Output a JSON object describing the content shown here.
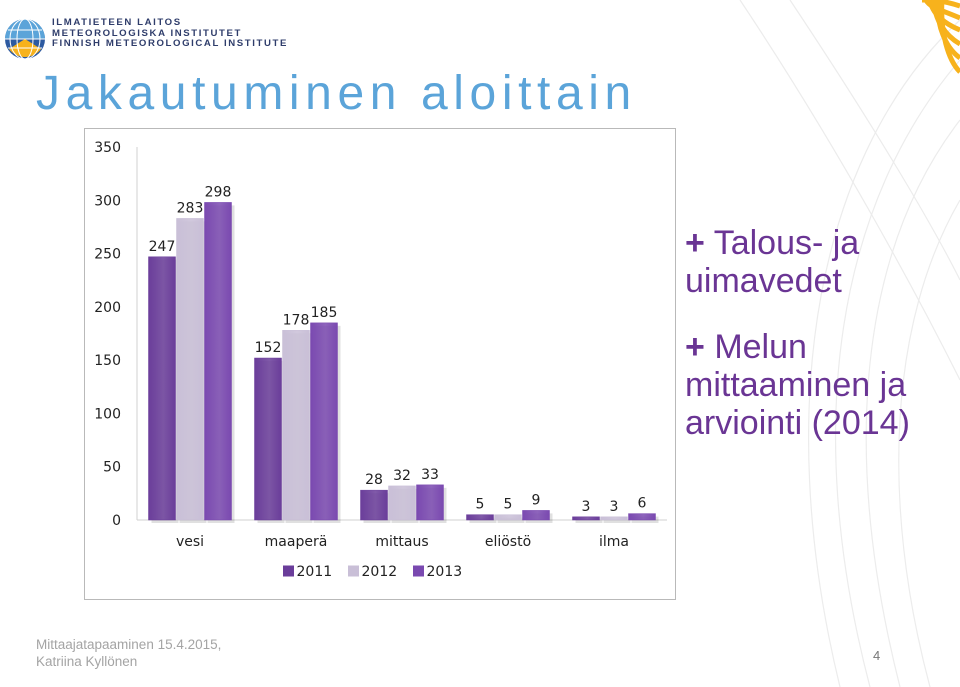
{
  "logo": {
    "lines": [
      "ILMATIETEEN LAITOS",
      "METEOROLOGISKA INSTITUTET",
      "FINNISH METEOROLOGICAL INSTITUTE"
    ]
  },
  "title": "Jakautuminen aloittain",
  "bullets": [
    {
      "plus": "+",
      "text": "Talous- ja uimavedet"
    },
    {
      "plus": "+",
      "text": "Melun mittaaminen ja arviointi (2014)"
    }
  ],
  "footer": {
    "line1": "Mittaajatapaaminen 15.4.2015,",
    "line2": "Katriina Kyllönen"
  },
  "page_number": "4",
  "colors": {
    "title": "#5ba4d9",
    "bullet_text": "#6a3594",
    "corner_accent": "#f7b21c"
  },
  "chart_data": {
    "type": "bar",
    "categories": [
      "vesi",
      "maaperä",
      "mittaus",
      "eliöstö",
      "ilma"
    ],
    "series": [
      {
        "name": "2011",
        "values": [
          247,
          152,
          28,
          5,
          3
        ],
        "color": "#6a3d9a"
      },
      {
        "name": "2012",
        "values": [
          283,
          178,
          32,
          5,
          3
        ],
        "color": "#c9bfd7"
      },
      {
        "name": "2013",
        "values": [
          298,
          185,
          33,
          9,
          6
        ],
        "color": "#7a49b0"
      }
    ],
    "yticks": [
      "0",
      "50",
      "100",
      "150",
      "200",
      "250",
      "300",
      "350"
    ],
    "ylim": [
      0,
      350
    ],
    "legend_position": "bottom",
    "grid": false,
    "data_labels": true
  }
}
